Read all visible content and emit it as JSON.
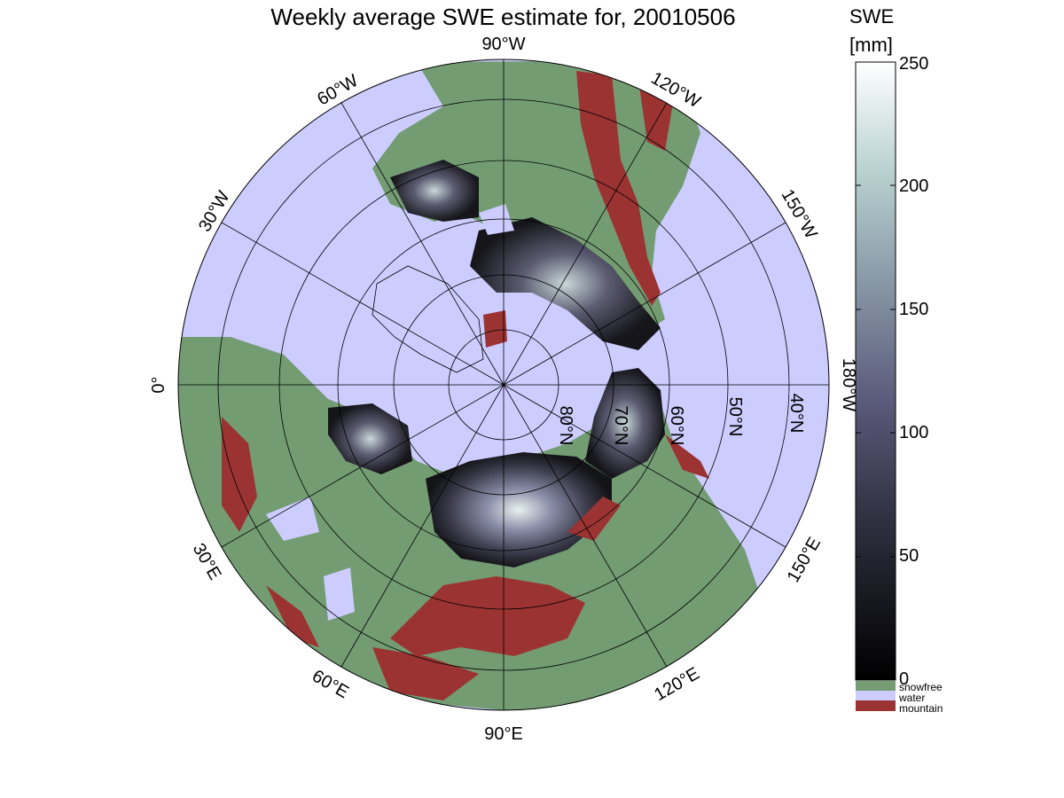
{
  "title": "Weekly average SWE estimate for, 20010506",
  "map": {
    "longitude_labels": [
      "90°W",
      "60°W",
      "120°W",
      "30°W",
      "150°W",
      "0°",
      "180°W",
      "30°E",
      "150°E",
      "60°E",
      "120°E",
      "90°E"
    ],
    "latitude_labels": [
      "80°N",
      "70°N",
      "60°N",
      "50°N",
      "40°N"
    ]
  },
  "colorbar": {
    "title_line1": "SWE",
    "title_line2": "[mm]",
    "ticks": [
      "0",
      "50",
      "100",
      "150",
      "200",
      "250"
    ],
    "range": [
      0,
      250
    ],
    "colors": {
      "low": "#000000",
      "mid": "#5a5a7a",
      "high": "#ffffff"
    }
  },
  "categories": [
    {
      "label": "snowfree",
      "color": "#739c73"
    },
    {
      "label": "water",
      "color": "#ccccff"
    },
    {
      "label": "mountain",
      "color": "#9c3333"
    }
  ]
}
